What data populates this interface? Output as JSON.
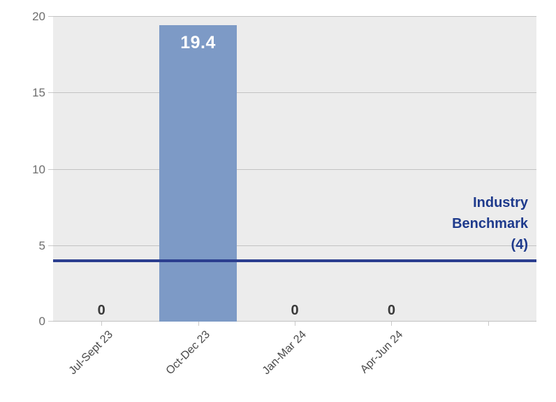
{
  "chart_data": {
    "type": "bar",
    "title": "",
    "categories": [
      "Jul-Sept 23",
      "Oct-Dec 23",
      "Jan-Mar 24",
      "Apr-Jun 24",
      ""
    ],
    "series": [
      {
        "name": "value",
        "values": [
          0,
          19.4,
          0,
          0,
          null
        ]
      }
    ],
    "data_labels": [
      "0",
      "19.4",
      "0",
      "0",
      ""
    ],
    "xlabel": "",
    "ylabel": "",
    "ylim": [
      0,
      20
    ],
    "y_ticks": [
      0,
      5,
      10,
      15,
      20
    ],
    "grid": true,
    "legend": "none",
    "benchmark": {
      "value": 4,
      "label_lines": [
        "Industry",
        "Benchmark",
        "(4)"
      ]
    }
  },
  "colors": {
    "page_background": "#ffffff",
    "plot_background": "#ececec",
    "gridline": "#c2c2c2",
    "tick_mark": "#c9c9c9",
    "bar_fill": "#7d9ac6",
    "bar_value_text": "#ffffff",
    "zero_value_text": "#3a3a3a",
    "y_tick_text": "#6e6e6e",
    "x_tick_text": "#4a4a4a",
    "benchmark_line": "#2b3e8f",
    "benchmark_text": "#1e3a8c"
  }
}
